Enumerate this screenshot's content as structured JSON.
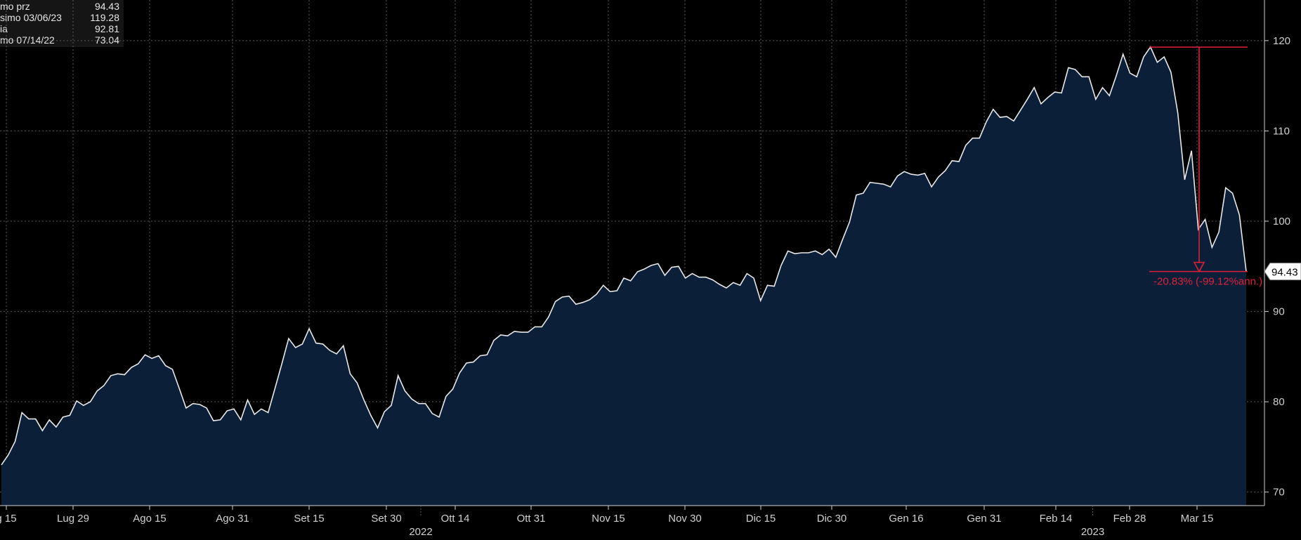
{
  "legend": [
    {
      "label": "mo prz",
      "value": "94.43"
    },
    {
      "label": "simo 03/06/23",
      "value": "119.28"
    },
    {
      "label": "ia",
      "value": "92.81"
    },
    {
      "label": "mo 07/14/22",
      "value": "73.04"
    }
  ],
  "colors": {
    "background": "#000000",
    "area_fill": "#0b1f38",
    "line": "#e8e8e8",
    "grid": "#5a5a5a",
    "annotation": "#e0203a",
    "axis_text": "#d0d0d0"
  },
  "chart_data": {
    "type": "area",
    "title": "",
    "xlabel": "",
    "ylabel": "",
    "ylim": [
      68.5,
      124.5
    ],
    "y_ticks": [
      70,
      80,
      90,
      100,
      110,
      120
    ],
    "grid": true,
    "y_axis_position": "right",
    "x_tick_labels": [
      "g 15",
      "Lug 29",
      "Ago 15",
      "Ago 31",
      "Set 15",
      "Set 30",
      "Ott 14",
      "Ott 31",
      "Nov 15",
      "Nov 30",
      "Dic 15",
      "Dic 30",
      "Gen 16",
      "Gen 31",
      "Feb 14",
      "Feb 28",
      "Mar 15"
    ],
    "year_labels": [
      {
        "text": "2022",
        "after_tick": 5
      },
      {
        "text": "2023",
        "after_tick": 14
      }
    ],
    "last_value_label": "94.43",
    "annotation": {
      "text": "-20.83% (-99.12%ann.)",
      "from_value": 119.28,
      "to_value": 94.43
    },
    "series": [
      {
        "values": [
          73.0,
          74.1,
          75.6,
          78.8,
          78.1,
          78.1,
          76.8,
          78.0,
          77.2,
          78.3,
          78.5,
          80.1,
          79.6,
          80.0,
          81.2,
          81.8,
          82.9,
          83.1,
          83.0,
          83.8,
          84.2,
          85.2,
          84.8,
          85.1,
          84.0,
          83.6,
          81.5,
          79.3,
          79.8,
          79.7,
          79.3,
          77.9,
          78.0,
          79.0,
          79.2,
          78.0,
          80.2,
          78.6,
          79.2,
          78.8,
          81.5,
          84.2,
          87.0,
          86.0,
          86.4,
          88.1,
          86.5,
          86.4,
          85.7,
          85.3,
          86.2,
          83.1,
          82.1,
          80.2,
          78.5,
          77.1,
          78.9,
          79.6,
          82.9,
          81.2,
          80.3,
          79.8,
          79.8,
          78.7,
          78.3,
          80.6,
          81.4,
          83.2,
          84.3,
          84.4,
          85.1,
          85.2,
          86.8,
          87.4,
          87.3,
          87.8,
          87.7,
          87.7,
          88.3,
          88.3,
          89.4,
          91.1,
          91.6,
          91.7,
          90.8,
          91.0,
          91.3,
          91.9,
          92.9,
          92.2,
          92.3,
          93.7,
          93.4,
          94.4,
          94.7,
          95.1,
          95.3,
          94.0,
          94.9,
          95.0,
          93.7,
          94.2,
          93.8,
          93.8,
          93.5,
          93.0,
          92.6,
          93.2,
          92.9,
          94.2,
          93.7,
          91.2,
          92.9,
          92.8,
          95.1,
          96.7,
          96.4,
          96.5,
          96.5,
          96.7,
          96.3,
          96.9,
          96.0,
          98.0,
          99.9,
          102.9,
          103.1,
          104.3,
          104.2,
          104.1,
          103.8,
          105.0,
          105.5,
          105.2,
          105.1,
          105.3,
          103.8,
          104.9,
          105.6,
          106.7,
          106.6,
          108.4,
          109.2,
          109.2,
          111.0,
          112.4,
          111.5,
          111.6,
          111.1,
          112.3,
          113.5,
          114.8,
          113.0,
          113.7,
          114.3,
          114.2,
          117.0,
          116.8,
          116.0,
          116.0,
          113.5,
          114.8,
          113.9,
          116.1,
          118.5,
          116.4,
          116.0,
          118.2,
          119.3,
          117.6,
          118.2,
          116.5,
          112.0,
          104.6,
          107.8,
          99.1,
          100.2,
          97.1,
          98.8,
          103.7,
          103.1,
          100.7,
          94.43
        ]
      }
    ]
  }
}
